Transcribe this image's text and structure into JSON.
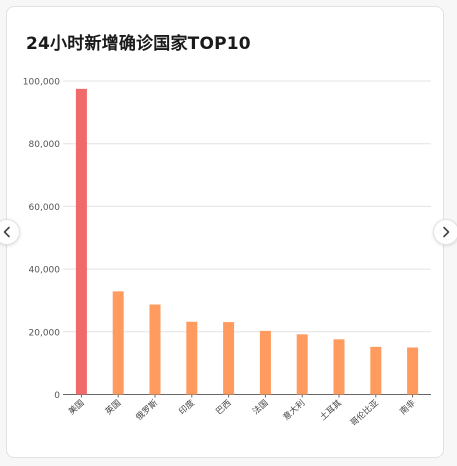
{
  "card": {
    "title": "24小时新增确诊国家TOP10"
  },
  "nav": {
    "prev_icon": "chevron-left-icon",
    "next_icon": "chevron-right-icon"
  },
  "chart_data": {
    "type": "bar",
    "title": "24小时新增确诊国家TOP10",
    "xlabel": "",
    "ylabel": "",
    "categories": [
      "美国",
      "英国",
      "俄罗斯",
      "印度",
      "巴西",
      "法国",
      "意大利",
      "土耳其",
      "哥伦比亚",
      "南非"
    ],
    "values": [
      97500,
      32900,
      28700,
      23200,
      23100,
      20300,
      19200,
      17600,
      15200,
      15000
    ],
    "ylim": [
      0,
      100000
    ],
    "yticks": [
      0,
      20000,
      40000,
      60000,
      80000,
      100000
    ],
    "ytick_labels": [
      "0",
      "20,000",
      "40,000",
      "60,000",
      "80,000",
      "100,000"
    ],
    "grid": true,
    "highlight_color": "#f06a6a",
    "bar_color": "#ff9b5e",
    "grid_color": "#e3e3e3",
    "axis_color": "#666666"
  }
}
